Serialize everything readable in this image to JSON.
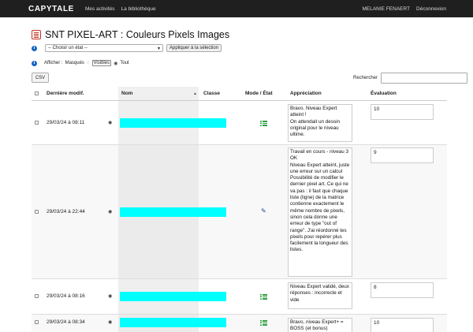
{
  "navbar": {
    "brand": "CAPYTALE",
    "links": [
      "Mes activités",
      "La bibliothèque"
    ],
    "user": "MELANIE FENAERT",
    "logout": "Déconnexion"
  },
  "page": {
    "title": "SNT PIXEL-ART : Couleurs Pixels Images"
  },
  "state": {
    "select_value": "-- Choisir un état --",
    "apply_label": "Appliquer à la sélection"
  },
  "filter": {
    "label": "Afficher :",
    "masques": "Masqués",
    "visibles": "Visibles",
    "tout": "Tout"
  },
  "toolbar": {
    "csv_label": "CSV",
    "search_label": "Rechercher",
    "search_value": ""
  },
  "table": {
    "headers": {
      "date": "Dernière modif.",
      "name": "Nom",
      "classe": "Classe",
      "mode": "Mode / État",
      "appreciation": "Appréciation",
      "evaluation": "Évaluation"
    },
    "rows": [
      {
        "date": "29/03/24 à 08:11",
        "mode_icon": "list-check-icon",
        "appreciation": "Bravo. Niveau Expert atteint !\nOn attendait un dessin original pour le niveau ultime.",
        "evaluation": "10"
      },
      {
        "date": "29/03/24 à 22:44",
        "mode_icon": "pencil-icon",
        "appreciation": "Travail en cours - niveau 3 OK\nNiveau Expert atteint, juste une erreur sur un calcul\nPossibilité de modifier le dernier pixel art. Ce qui ne va pas : il faut que chaque liste (ligne) de la matrice contienne exactement le même nombre de pixels, sinon cela donne une erreur de type \"out of range\". J'ai réordonné tes pixels pour repérer plus facilement la longueur des listes.",
        "evaluation": "9"
      },
      {
        "date": "29/03/24 à 08:16",
        "mode_icon": "list-check-icon",
        "appreciation": "Niveau Expert validé, deux réponses : incorrecte et vide",
        "evaluation": "8"
      },
      {
        "date": "29/03/24 à 08:34",
        "mode_icon": "list-check-icon",
        "appreciation": "Bravo, niveau Expert+ = BOSS (et bonus)",
        "evaluation": "10"
      }
    ]
  },
  "colors": {
    "navbar": "#1f1f1f",
    "redacted": "#00ffff",
    "mode_list": "#2e9e3e",
    "mode_edit": "#1a3fa0"
  }
}
